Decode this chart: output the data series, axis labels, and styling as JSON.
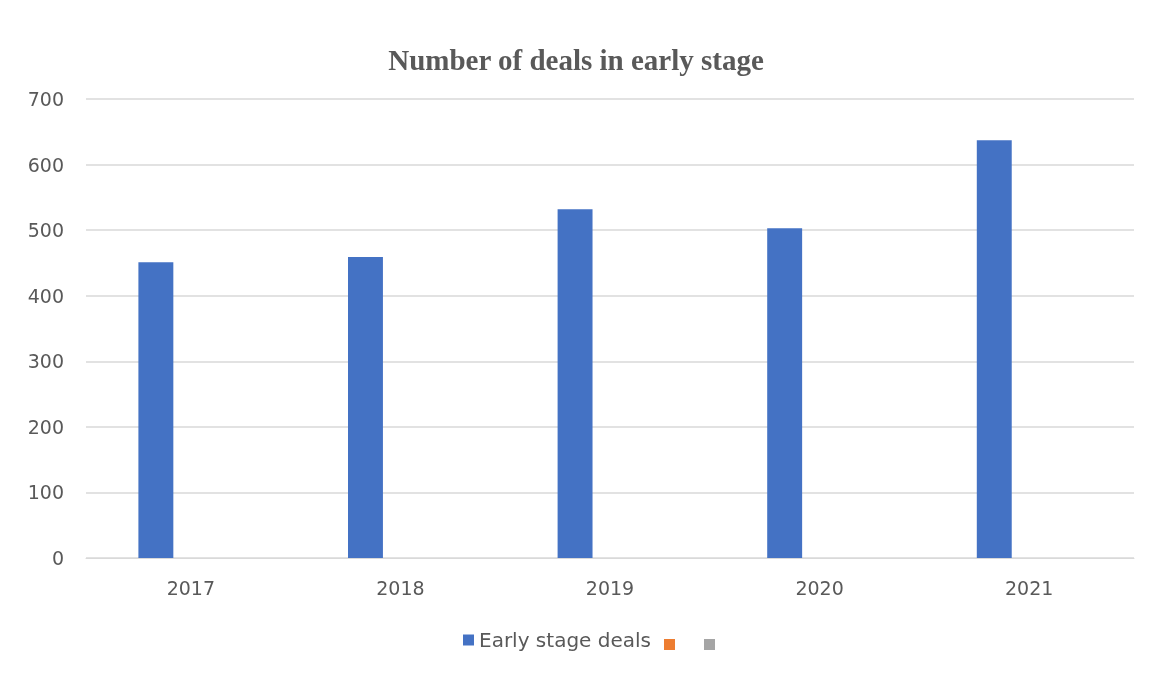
{
  "chart_data": {
    "type": "bar",
    "title": "Number of deals in early stage",
    "categories": [
      "2017",
      "2018",
      "2019",
      "2020",
      "2021"
    ],
    "series": [
      {
        "name": "Early stage deals",
        "color": "#4472c4",
        "values": [
          451,
          459,
          532,
          503,
          637
        ]
      },
      {
        "color": "#ed7d31",
        "values": [
          null,
          null,
          null,
          null,
          null
        ]
      },
      {
        "color": "#a5a5a5",
        "values": [
          null,
          null,
          null,
          null,
          null
        ]
      }
    ],
    "ylim": [
      0,
      700
    ],
    "yticks": [
      0,
      100,
      200,
      300,
      400,
      500,
      600,
      700
    ],
    "grid": "y",
    "legend": "bottom"
  }
}
